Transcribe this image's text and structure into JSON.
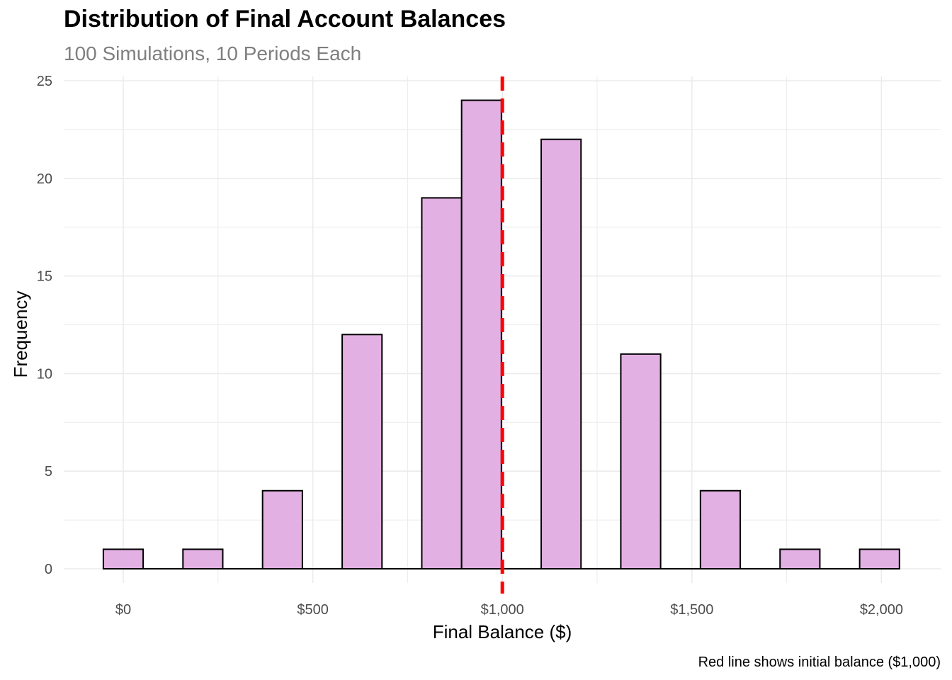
{
  "chart_data": {
    "type": "bar",
    "title": "Distribution of Final Account Balances",
    "subtitle": "100 Simulations, 10 Periods Each",
    "xlabel": "Final Balance ($)",
    "ylabel": "Frequency",
    "caption": "Red line shows initial balance ($1,000)",
    "bin_width": 105,
    "bins": [
      {
        "center": 0,
        "count": 1
      },
      {
        "center": 210,
        "count": 1
      },
      {
        "center": 420,
        "count": 4
      },
      {
        "center": 630,
        "count": 12
      },
      {
        "center": 840,
        "count": 19
      },
      {
        "center": 945,
        "count": 24
      },
      {
        "center": 1155,
        "count": 22
      },
      {
        "center": 1365,
        "count": 11
      },
      {
        "center": 1575,
        "count": 4
      },
      {
        "center": 1785,
        "count": 1
      },
      {
        "center": 1995,
        "count": 1
      }
    ],
    "xlim": [
      -150,
      2100
    ],
    "ylim": [
      0,
      25
    ],
    "x_ticks": [
      {
        "value": 0,
        "label": "$0"
      },
      {
        "value": 500,
        "label": "$500"
      },
      {
        "value": 1000,
        "label": "$1,000"
      },
      {
        "value": 1500,
        "label": "$1,500"
      },
      {
        "value": 2000,
        "label": "$2,000"
      }
    ],
    "y_ticks": [
      {
        "value": 0,
        "label": "0"
      },
      {
        "value": 5,
        "label": "5"
      },
      {
        "value": 10,
        "label": "10"
      },
      {
        "value": 15,
        "label": "15"
      },
      {
        "value": 20,
        "label": "20"
      },
      {
        "value": 25,
        "label": "25"
      }
    ],
    "reference_line": {
      "x": 1000,
      "style": "dashed"
    },
    "grid": true,
    "legend": "none",
    "colors": {
      "bar_fill": "#e2b0e2",
      "bar_stroke": "#000000",
      "reference_line": "#ff0000",
      "grid": "#ebebeb"
    }
  }
}
